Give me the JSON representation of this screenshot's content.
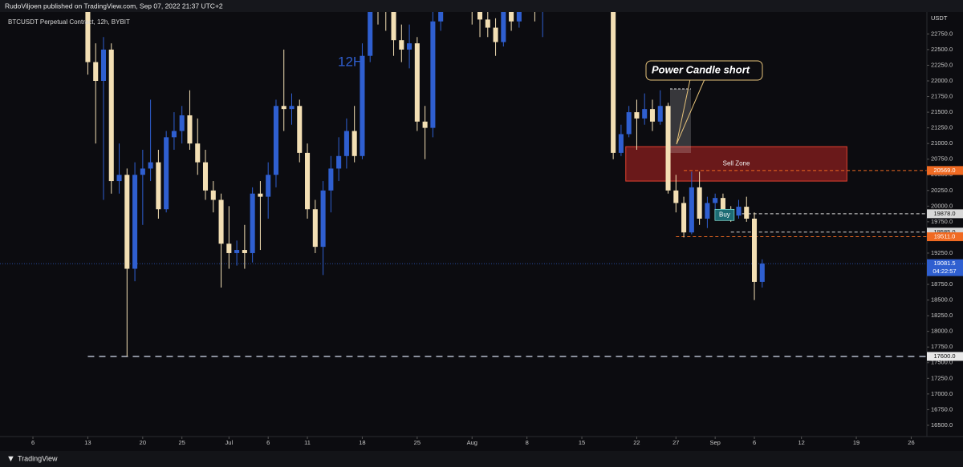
{
  "header": "RudoViljoen published on TradingView.com, Sep 07, 2022 21:37 UTC+2",
  "footer": "TradingView",
  "chart_data": {
    "type": "candlestick",
    "title": "BTCUSDT Perpetual Contract, 12h, BYBIT",
    "y_label": "USDT",
    "up_color": "#2f5fd0",
    "down_color": "#f3dfb4",
    "x": [
      12,
      13,
      14,
      15,
      16,
      17,
      18,
      19,
      20,
      21,
      22,
      23,
      24,
      25,
      26,
      27,
      28,
      29,
      30,
      31,
      32,
      33,
      34,
      35,
      36,
      37,
      38,
      39,
      40,
      41,
      42,
      43,
      44,
      45,
      46,
      47,
      48,
      49,
      50,
      51,
      52,
      53,
      54,
      55,
      56,
      57,
      58,
      59,
      60,
      61,
      62,
      63,
      64,
      65,
      66,
      67,
      68,
      69,
      70,
      71,
      72,
      73,
      74,
      75,
      76,
      77,
      78,
      79,
      80,
      81,
      82,
      83,
      84,
      85,
      86,
      87,
      88,
      89,
      90,
      91,
      92,
      93,
      94,
      95,
      96,
      97,
      98
    ],
    "open": [
      23400,
      22300,
      22000,
      22500,
      20400,
      20500,
      19000,
      20500,
      20600,
      20700,
      19950,
      21100,
      21200,
      21450,
      21000,
      20700,
      20250,
      20100,
      19400,
      19250,
      19300,
      19250,
      20200,
      20150,
      20500,
      21600,
      21550,
      21600,
      20850,
      19950,
      19350,
      20250,
      20600,
      20800,
      21200,
      20800,
      22400,
      23300,
      23200,
      23150,
      22650,
      22500,
      22600,
      21350,
      21250,
      22950,
      23850,
      23800,
      23650,
      23300,
      23250,
      22980,
      22850,
      22620,
      23300,
      22950,
      23200,
      23800,
      23150,
      23950,
      23950,
      24400,
      24450,
      24300,
      24100,
      23850,
      23350,
      23200,
      20850,
      21150,
      21500,
      21400,
      21550,
      21350,
      21600,
      20250,
      20050,
      19580,
      20300,
      19800,
      20050,
      20130,
      19950,
      19850,
      19990,
      19800,
      18790
    ],
    "high": [
      23600,
      22600,
      22700,
      22600,
      21000,
      20600,
      20700,
      20900,
      21700,
      20900,
      21200,
      21500,
      21600,
      21850,
      21400,
      20900,
      20400,
      20200,
      20000,
      19450,
      19700,
      20300,
      20400,
      20700,
      21700,
      22500,
      21800,
      21700,
      21000,
      20100,
      20400,
      20800,
      21100,
      21400,
      21600,
      22600,
      23500,
      24200,
      23450,
      23300,
      22900,
      22900,
      22700,
      21600,
      23100,
      24000,
      24100,
      24200,
      23800,
      23500,
      23450,
      23200,
      23000,
      23400,
      23400,
      23350,
      24200,
      23900,
      24100,
      24300,
      24900,
      24700,
      25100,
      24500,
      24300,
      24000,
      23600,
      23400,
      21300,
      21600,
      21700,
      21800,
      21700,
      21850,
      21650,
      20500,
      20150,
      20550,
      20550,
      20150,
      20200,
      20200,
      20000,
      20100,
      20150,
      19900,
      19150
    ],
    "low": [
      22100,
      21000,
      20100,
      20200,
      20200,
      17600,
      18800,
      19700,
      20400,
      19800,
      19900,
      20900,
      21000,
      20900,
      20500,
      20100,
      19900,
      18700,
      19000,
      19050,
      19000,
      19100,
      19300,
      19800,
      20300,
      21200,
      21300,
      20700,
      19800,
      19250,
      18900,
      19900,
      20400,
      20600,
      20700,
      20750,
      22300,
      22900,
      22800,
      22400,
      22300,
      22200,
      21200,
      20750,
      21100,
      22800,
      23500,
      23400,
      23100,
      22900,
      22700,
      22700,
      22400,
      22550,
      22800,
      22850,
      23100,
      22950,
      22700,
      23600,
      23800,
      24200,
      24100,
      23800,
      23700,
      23200,
      23100,
      20750,
      20800,
      21100,
      20900,
      21300,
      21200,
      21300,
      20200,
      19900,
      19500,
      19550,
      19700,
      19650,
      19800,
      19850,
      19750,
      19800,
      19750,
      18500,
      18700
    ],
    "close": [
      22300,
      22000,
      22500,
      20400,
      20500,
      19000,
      20500,
      20600,
      20700,
      19950,
      21100,
      21200,
      21450,
      21000,
      20700,
      20250,
      20100,
      19400,
      19250,
      19300,
      19250,
      20200,
      20150,
      20500,
      21600,
      21550,
      21600,
      20850,
      19950,
      19350,
      20250,
      20600,
      20800,
      21200,
      20800,
      22400,
      23300,
      23200,
      23150,
      22650,
      22500,
      22600,
      21350,
      21250,
      22950,
      23850,
      23800,
      23650,
      23300,
      23250,
      22980,
      22850,
      22620,
      23300,
      22950,
      23200,
      23800,
      23150,
      23950,
      23950,
      24400,
      24450,
      24300,
      24100,
      23850,
      23350,
      23200,
      20850,
      21150,
      21500,
      21400,
      21550,
      21350,
      21600,
      20250,
      20050,
      19580,
      20300,
      19800,
      20050,
      20130,
      19950,
      19850,
      19990,
      19800,
      18790,
      19081.5
    ],
    "xlim": [
      0.8,
      119
    ],
    "xticks": [
      {
        "value": 5,
        "label": "6"
      },
      {
        "value": 12,
        "label": "13"
      },
      {
        "value": 19,
        "label": "20"
      },
      {
        "value": 24,
        "label": "25"
      },
      {
        "value": 30,
        "label": "Jul"
      },
      {
        "value": 35,
        "label": "6"
      },
      {
        "value": 40,
        "label": "11"
      },
      {
        "value": 47,
        "label": "18"
      },
      {
        "value": 54,
        "label": "25"
      },
      {
        "value": 61,
        "label": "Aug"
      },
      {
        "value": 68,
        "label": "8"
      },
      {
        "value": 75,
        "label": "15"
      },
      {
        "value": 82,
        "label": "22"
      },
      {
        "value": 87,
        "label": "27"
      },
      {
        "value": 92,
        "label": "Sep"
      },
      {
        "value": 97,
        "label": "6"
      },
      {
        "value": 103,
        "label": "12"
      },
      {
        "value": 110,
        "label": "19"
      },
      {
        "value": 117,
        "label": "26"
      }
    ],
    "ylim": [
      16320,
      23100
    ],
    "yticks": [
      {
        "value": 16500,
        "label": "16500.0"
      },
      {
        "value": 16750,
        "label": "16750.0"
      },
      {
        "value": 17000,
        "label": "17000.0"
      },
      {
        "value": 17250,
        "label": "17250.0"
      },
      {
        "value": 17500,
        "label": "17500.0"
      },
      {
        "value": 17750,
        "label": "17750.0"
      },
      {
        "value": 18000,
        "label": "18000.0"
      },
      {
        "value": 18250,
        "label": "18250.0"
      },
      {
        "value": 18500,
        "label": "18500.0"
      },
      {
        "value": 18750,
        "label": "18750.0"
      },
      {
        "value": 19250,
        "label": "19250.0"
      },
      {
        "value": 19750,
        "label": "19750.0"
      },
      {
        "value": 20000,
        "label": "20000.0"
      },
      {
        "value": 20250,
        "label": "20250.0"
      },
      {
        "value": 20500,
        "label": "20500.0"
      },
      {
        "value": 20750,
        "label": "20750.0"
      },
      {
        "value": 21000,
        "label": "21000.0"
      },
      {
        "value": 21250,
        "label": "21250.0"
      },
      {
        "value": 21500,
        "label": "21500.0"
      },
      {
        "value": 21750,
        "label": "21750.0"
      },
      {
        "value": 22000,
        "label": "22000.0"
      },
      {
        "value": 22250,
        "label": "22250.0"
      },
      {
        "value": 22500,
        "label": "22500.0"
      },
      {
        "value": 22750,
        "label": "22750.0"
      }
    ],
    "levels": [
      {
        "value": 17600,
        "label": "17600.0",
        "color": "#8a8f9c",
        "x0": 12,
        "dash": "8 6"
      },
      {
        "value": 20569,
        "label": "20569.0",
        "color": "#f06a22",
        "x0": 88,
        "dash": "4 3"
      },
      {
        "value": 19878,
        "label": "19878.0",
        "color": "#d8d8d8",
        "x0": 94,
        "dash": "4 3"
      },
      {
        "value": 19585,
        "label": "19585.0",
        "color": "#d8d8d8",
        "x0": 94,
        "dash": "4 3"
      },
      {
        "value": 19511,
        "label": "19511.0",
        "color": "#f06a22",
        "x0": 87,
        "dash": "4 3"
      }
    ],
    "current_price": {
      "value": 19081.5,
      "label": "19081.5",
      "timer": "04:22:57",
      "color": "#2f5fd0"
    },
    "annotations": {
      "interval": "12H",
      "callout": "Power Candle short",
      "sell_zone": {
        "label": "Sell Zone",
        "top": 20950,
        "bottom": 20400,
        "x0": 80.6,
        "x1": 108.8
      },
      "buy": {
        "label": "Buy",
        "x": 93.2,
        "y": 19860
      }
    }
  }
}
